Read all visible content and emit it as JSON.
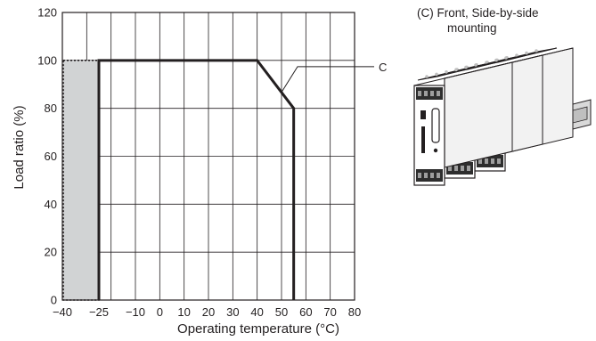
{
  "chart_data": {
    "type": "line",
    "title": "",
    "xlabel": "Operating temperature (°C)",
    "ylabel": "Load ratio (%)",
    "xlim": [
      -40,
      80
    ],
    "ylim": [
      0,
      120
    ],
    "x_ticks": [
      -40,
      -25,
      -10,
      0,
      10,
      20,
      30,
      40,
      50,
      60,
      70,
      80
    ],
    "x_tick_labels": [
      "−40",
      "−25",
      "−10",
      "0",
      "10",
      "20",
      "30",
      "40",
      "50",
      "60",
      "70",
      "80"
    ],
    "y_ticks": [
      0,
      20,
      40,
      60,
      80,
      100,
      120
    ],
    "y_tick_labels": [
      "0",
      "20",
      "40",
      "60",
      "80",
      "100",
      "120"
    ],
    "grid": true,
    "series": [
      {
        "name": "C",
        "style": "solid-thick",
        "color": "#231f20",
        "x": [
          -25,
          -25,
          40,
          55,
          55
        ],
        "y": [
          0,
          100,
          100,
          80,
          0
        ]
      }
    ],
    "shaded_region": {
      "x": [
        -40,
        -25
      ],
      "y": [
        0,
        100
      ],
      "fill": "#d1d3d4",
      "border": "dotted"
    },
    "annotations": [
      {
        "text": "C",
        "points_to": {
          "x": 50,
          "y": 86.7
        }
      }
    ]
  },
  "product": {
    "caption_line1": "(C) Front, Side-by-side",
    "caption_line2": "mounting",
    "image": "three-side-by-side-din-rail-modules"
  }
}
